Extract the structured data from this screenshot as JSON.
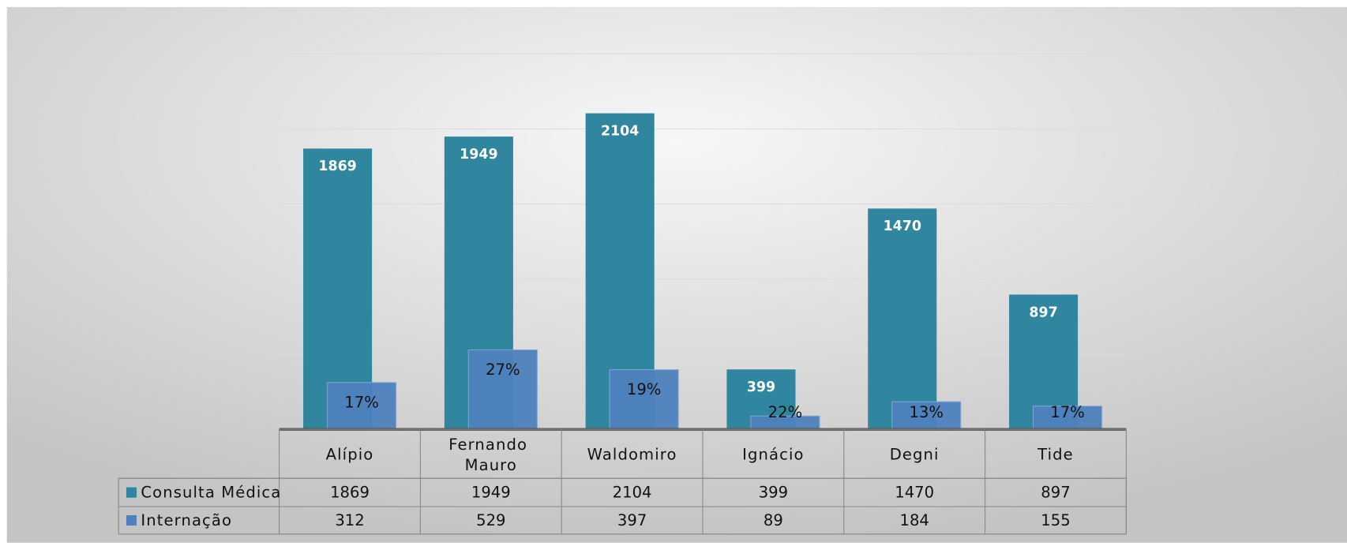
{
  "chart_data": {
    "type": "bar",
    "categories": [
      "Alípio",
      "Fernando Mauro",
      "Waldomiro",
      "Ignácio",
      "Degni",
      "Tide"
    ],
    "series": [
      {
        "name": "Consulta Médica",
        "color": "#2f869e",
        "values": [
          1869,
          1949,
          2104,
          399,
          1470,
          897
        ]
      },
      {
        "name": "Internação",
        "color": "#4f81bd",
        "values": [
          312,
          529,
          397,
          89,
          184,
          155
        ],
        "percent_labels": [
          "17%",
          "27%",
          "19%",
          "22%",
          "13%",
          "17%"
        ]
      }
    ],
    "ylim": [
      0,
      2500
    ],
    "yticks": [
      0,
      500,
      1000,
      1500,
      2000,
      2500
    ],
    "grid": true,
    "data_table": true
  }
}
